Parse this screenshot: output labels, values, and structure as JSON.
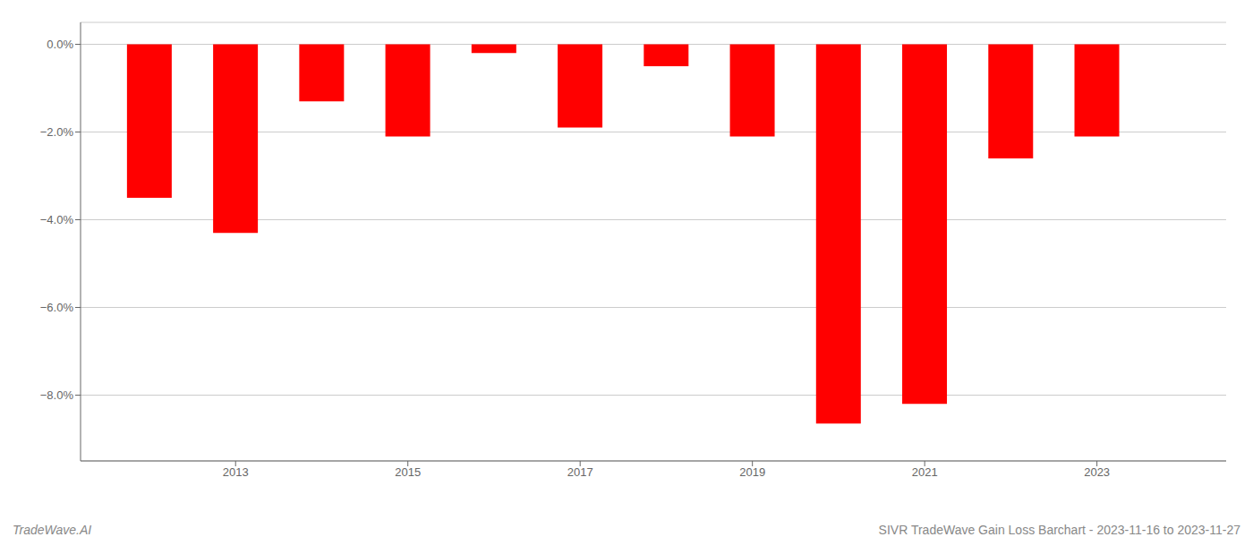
{
  "chart_data": {
    "type": "bar",
    "title": "SIVR TradeWave Gain Loss Barchart - 2023-11-16 to 2023-11-27",
    "annotations": [
      "TradeWave.AI"
    ],
    "x": [
      2012,
      2013,
      2014,
      2015,
      2016,
      2017,
      2018,
      2019,
      2020,
      2021,
      2022,
      2023
    ],
    "values": [
      -3.5,
      -4.3,
      -1.3,
      -2.1,
      -0.2,
      -1.9,
      -0.5,
      -2.1,
      -8.65,
      -8.2,
      -2.6,
      -2.1
    ],
    "color": "#FF0000",
    "xlim": [
      2011.2,
      2024.5
    ],
    "xticks": [
      2013,
      2015,
      2017,
      2019,
      2021,
      2023
    ],
    "ylim": [
      -9.5,
      0.5
    ],
    "yticks": [
      {
        "value": 0.0,
        "label": "0.0%"
      },
      {
        "value": -2.0,
        "label": "−2.0%"
      },
      {
        "value": -4.0,
        "label": "−4.0%"
      },
      {
        "value": -6.0,
        "label": "−6.0%"
      },
      {
        "value": -8.0,
        "label": "−8.0%"
      }
    ],
    "grid": "y"
  }
}
